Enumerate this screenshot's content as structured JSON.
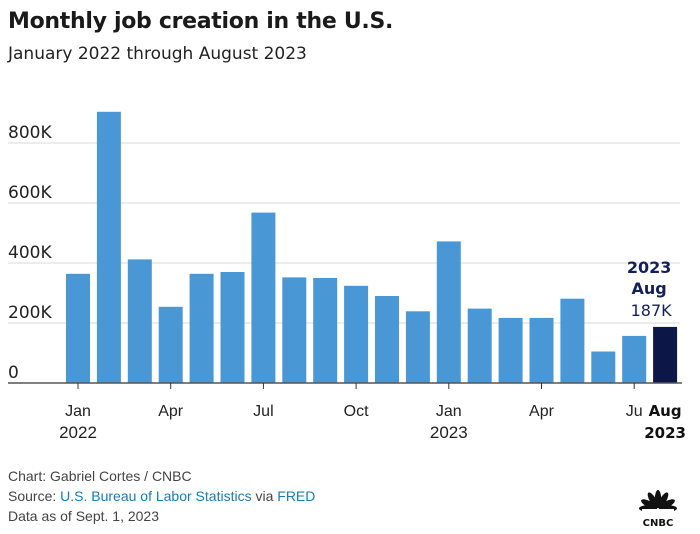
{
  "header": {
    "title": "Monthly job creation in the U.S.",
    "subtitle": "January 2022 through August 2023"
  },
  "chart_data": {
    "type": "bar",
    "title": "Monthly job creation in the U.S.",
    "subtitle": "January 2022 through August 2023",
    "xlabel": "",
    "ylabel": "",
    "ylim": [
      0,
      900000
    ],
    "grid": true,
    "yticks": [
      {
        "value": 0,
        "label": "0"
      },
      {
        "value": 200000,
        "label": "200K"
      },
      {
        "value": 400000,
        "label": "400K"
      },
      {
        "value": 600000,
        "label": "600K"
      },
      {
        "value": 800000,
        "label": "800K"
      }
    ],
    "categories": [
      "Jan 2022",
      "Feb 2022",
      "Mar 2022",
      "Apr 2022",
      "May 2022",
      "Jun 2022",
      "Jul 2022",
      "Aug 2022",
      "Sep 2022",
      "Oct 2022",
      "Nov 2022",
      "Dec 2022",
      "Jan 2023",
      "Feb 2023",
      "Mar 2023",
      "Apr 2023",
      "May 2023",
      "Jun 2023",
      "Jul 2023",
      "Aug 2023"
    ],
    "values": [
      364000,
      904000,
      412000,
      254000,
      364000,
      370000,
      568000,
      352000,
      350000,
      324000,
      290000,
      239000,
      472000,
      248000,
      217000,
      217000,
      281000,
      105000,
      157000,
      187000
    ],
    "xticks": [
      {
        "index": 0,
        "line1": "Jan",
        "line2": "2022"
      },
      {
        "index": 3,
        "line1": "Apr",
        "line2": ""
      },
      {
        "index": 6,
        "line1": "Jul",
        "line2": ""
      },
      {
        "index": 9,
        "line1": "Oct",
        "line2": ""
      },
      {
        "index": 12,
        "line1": "Jan",
        "line2": "2023"
      },
      {
        "index": 15,
        "line1": "Apr",
        "line2": ""
      },
      {
        "index": 18,
        "line1": "Ju",
        "line2": ""
      }
    ],
    "highlight": {
      "index": 19,
      "year_label": "2023",
      "month_label": "Aug",
      "value_label": "187K",
      "axis_line1": "Aug",
      "axis_line2": "2023"
    },
    "colors": {
      "bar": "#4a97d5",
      "highlight_bar": "#0c1647",
      "highlight_text": "#14205a",
      "grid": "#d9d9d9",
      "axis": "#555555"
    }
  },
  "footer": {
    "credit": "Chart: Gabriel Cortes / CNBC",
    "source_prefix": "Source: ",
    "source_link1": "U.S. Bureau of Labor Statistics",
    "source_via": " via ",
    "source_link2": "FRED",
    "data_as_of": "Data as of Sept. 1, 2023"
  },
  "logo": {
    "name": "CNBC",
    "icon": "cnbc-peacock-icon"
  }
}
